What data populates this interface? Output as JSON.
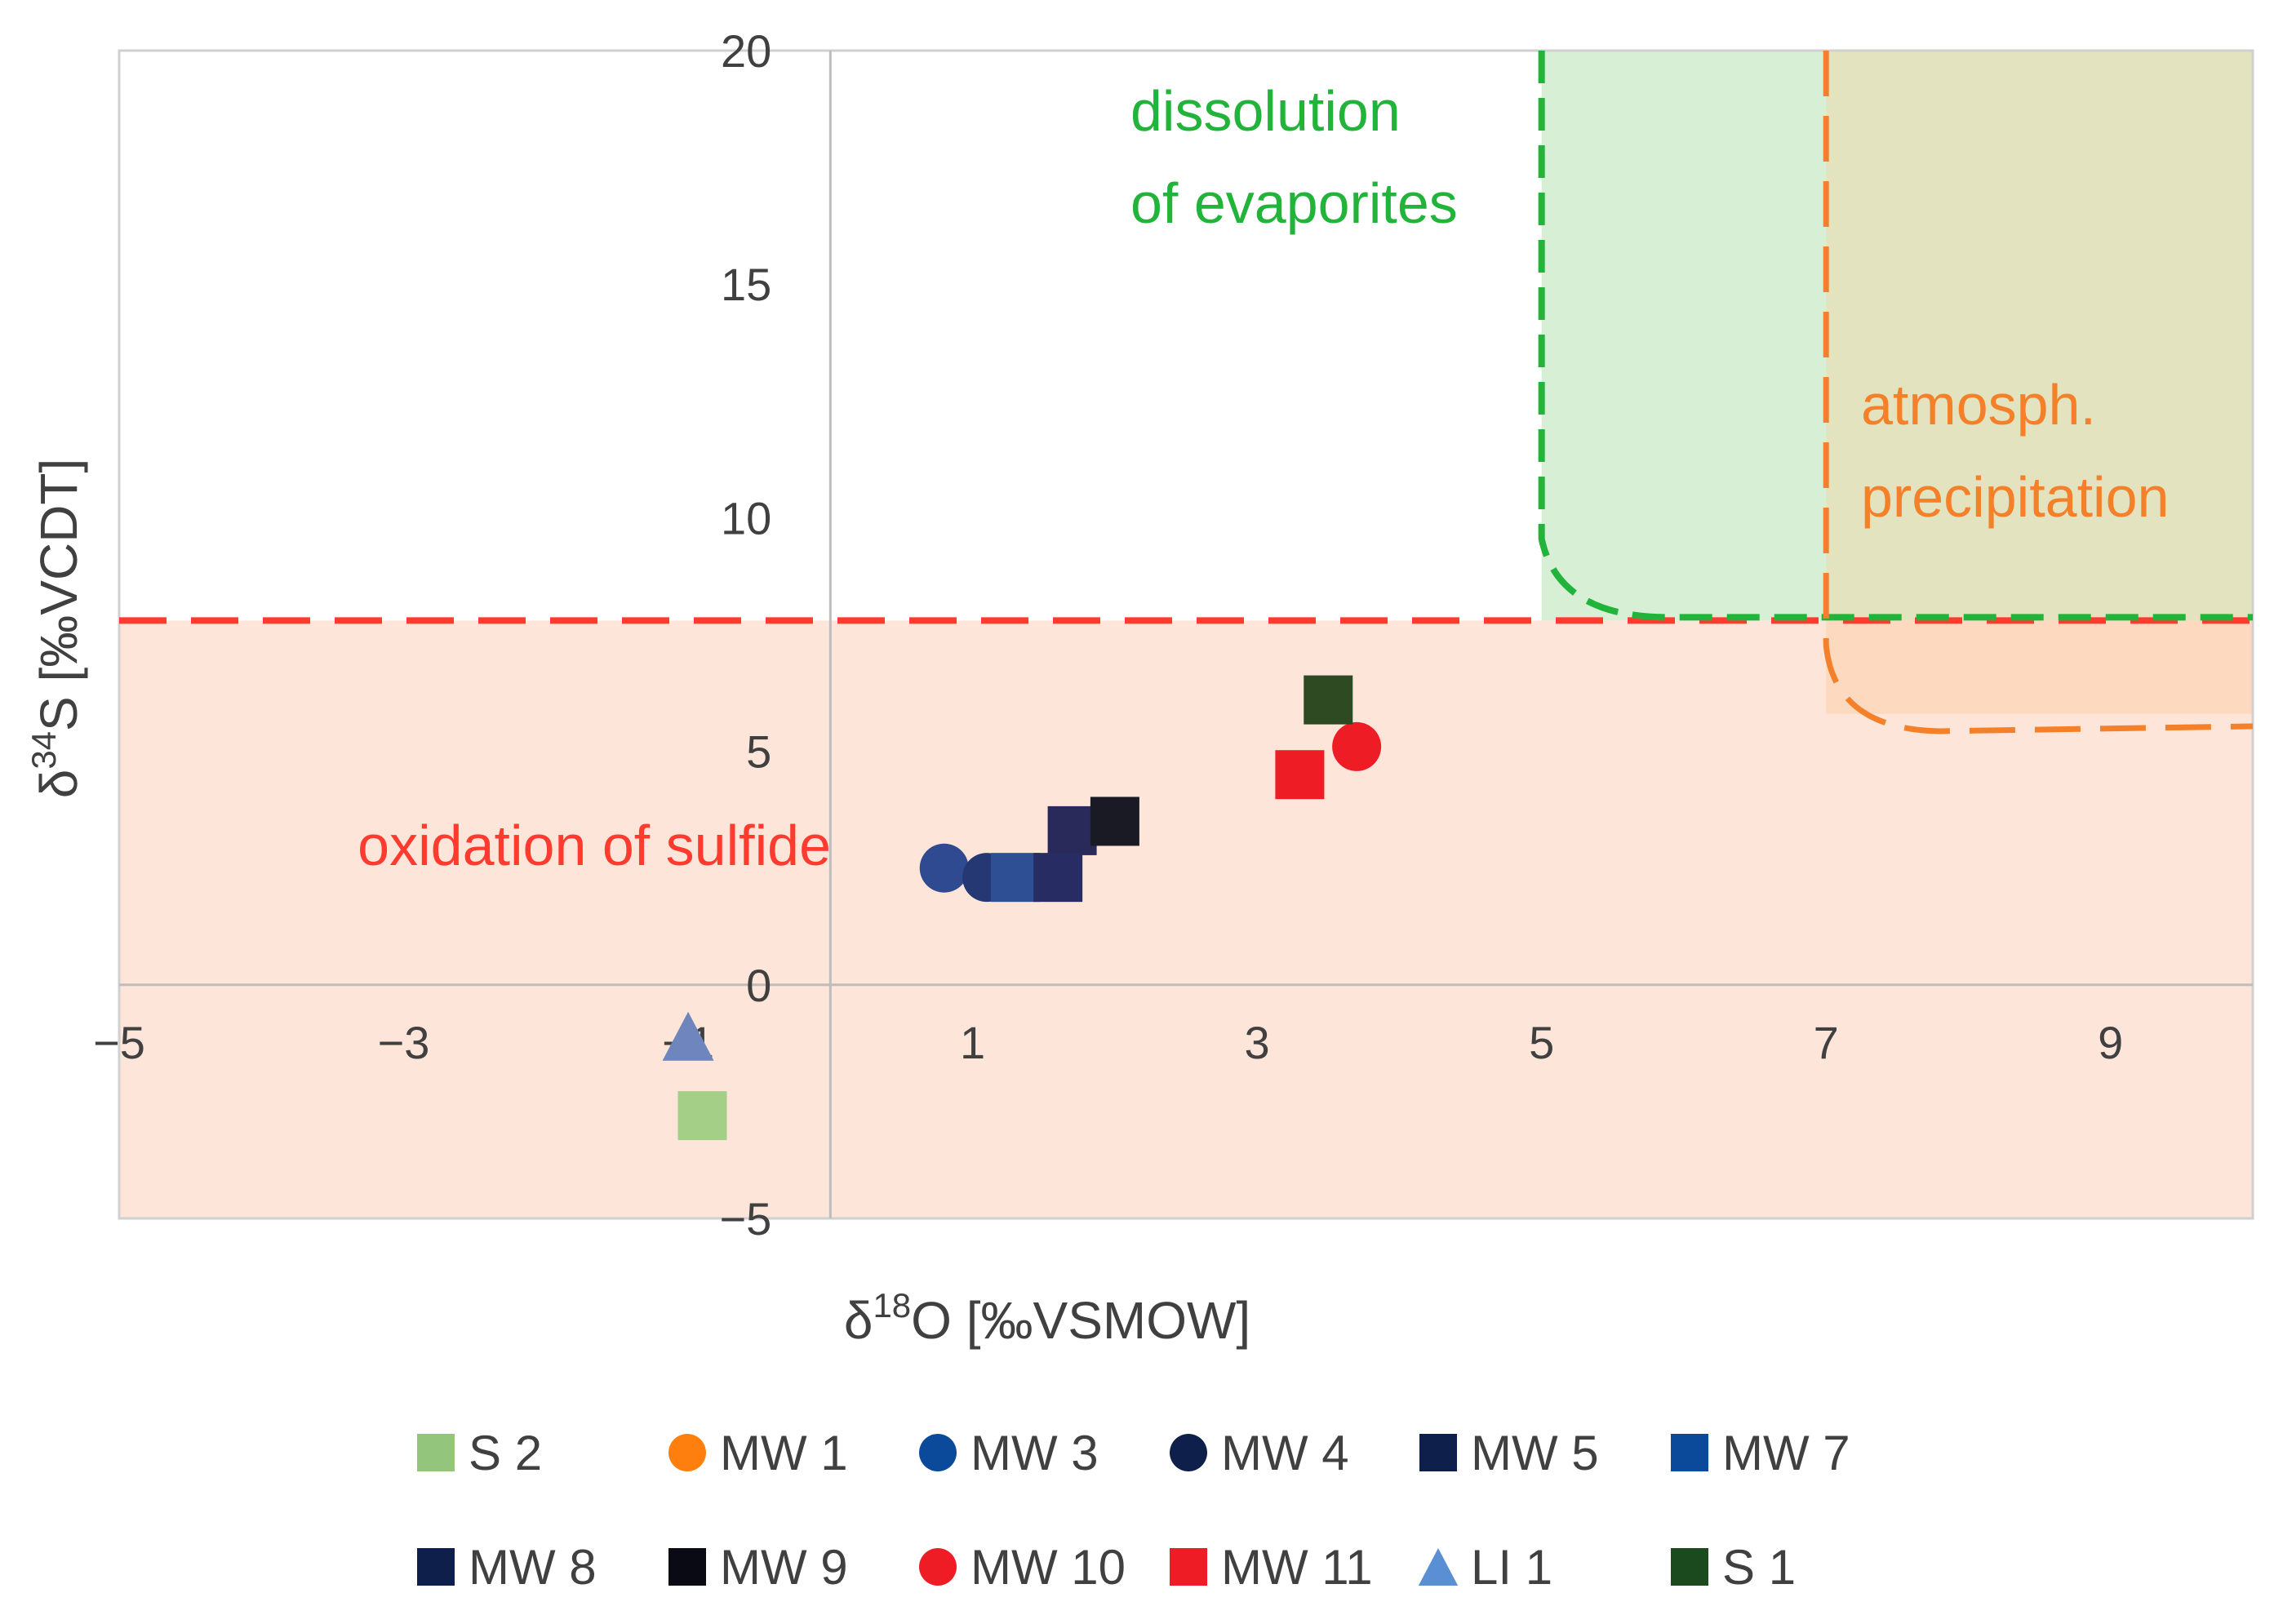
{
  "chart_data": {
    "type": "scatter",
    "xlabel_parts": [
      "δ",
      "18",
      "O [‰VSMOW]"
    ],
    "ylabel_parts": [
      "δ",
      "34",
      "S [‰VCDT]"
    ],
    "xlim": [
      -5,
      10
    ],
    "ylim": [
      -5,
      20
    ],
    "x_ticks": [
      {
        "value": -5,
        "label": "−5"
      },
      {
        "value": -3,
        "label": "−3"
      },
      {
        "value": -1,
        "label": "−1"
      },
      {
        "value": 1,
        "label": "1"
      },
      {
        "value": 3,
        "label": "3"
      },
      {
        "value": 5,
        "label": "5"
      },
      {
        "value": 7,
        "label": "7"
      },
      {
        "value": 9,
        "label": "9"
      }
    ],
    "y_ticks": [
      {
        "value": -5,
        "label": "−5"
      },
      {
        "value": 0,
        "label": "0"
      },
      {
        "value": 5,
        "label": "5"
      },
      {
        "value": 10,
        "label": "10"
      },
      {
        "value": 15,
        "label": "15"
      },
      {
        "value": 20,
        "label": "20"
      }
    ],
    "regions": [
      {
        "name": "oxidation-of-sulfide",
        "label_lines": [
          "oxidation of sulfide"
        ],
        "color": "#ff3b30",
        "fill": "#fde5da",
        "x": [
          -5,
          10
        ],
        "y": [
          -5,
          7.8
        ]
      },
      {
        "name": "dissolution-of-evaporites",
        "label_lines": [
          "dissolution",
          "of evaporites"
        ],
        "color": "#22b43a",
        "fill": "#d6efd5",
        "x": [
          5,
          10
        ],
        "y": [
          7.8,
          20
        ]
      },
      {
        "name": "atmospheric-precipitation",
        "label_lines": [
          "atmosph.",
          "precipitation"
        ],
        "color": "#f5802a",
        "fill": "#e3e3bf",
        "x": [
          7,
          10
        ],
        "y": [
          5.5,
          20
        ]
      }
    ],
    "series": [
      {
        "name": "S 2",
        "marker": "square",
        "color": "#a4cf87",
        "points": [
          [
            -0.9,
            -2.8
          ]
        ]
      },
      {
        "name": "MW 1",
        "marker": "circle",
        "color": "#ff7f0e",
        "points": []
      },
      {
        "name": "MW 3",
        "marker": "circle",
        "color": "#2f4a90",
        "points": [
          [
            0.8,
            2.5
          ]
        ]
      },
      {
        "name": "MW 4",
        "marker": "circle",
        "color": "#263873",
        "points": [
          [
            1.1,
            2.3
          ]
        ]
      },
      {
        "name": "MW 5",
        "marker": "square",
        "color": "#2a2a5a",
        "points": [
          [
            1.7,
            3.3
          ]
        ]
      },
      {
        "name": "MW 7",
        "marker": "square",
        "color": "#2f4f95",
        "points": [
          [
            1.3,
            2.3
          ]
        ]
      },
      {
        "name": "MW 8",
        "marker": "square",
        "color": "#272d63",
        "points": [
          [
            1.6,
            2.3
          ]
        ]
      },
      {
        "name": "MW 9",
        "marker": "square",
        "color": "#1a1a24",
        "points": [
          [
            2.0,
            3.5
          ]
        ]
      },
      {
        "name": "MW 10",
        "marker": "circle",
        "color": "#ee1c25",
        "points": [
          [
            3.7,
            5.1
          ]
        ]
      },
      {
        "name": "MW 11",
        "marker": "square",
        "color": "#ee1c25",
        "points": [
          [
            3.3,
            4.5
          ]
        ]
      },
      {
        "name": "LI 1",
        "marker": "triangle",
        "color": "#6f85bd",
        "points": [
          [
            -1.0,
            -1.1
          ]
        ]
      },
      {
        "name": "S 1",
        "marker": "square",
        "color": "#2e4a22",
        "points": [
          [
            3.5,
            6.1
          ]
        ]
      }
    ],
    "legend": [
      {
        "label": "S 2",
        "marker": "square",
        "color": "#93c57c"
      },
      {
        "label": "MW 1",
        "marker": "circle",
        "color": "#ff7f0e"
      },
      {
        "label": "MW 3",
        "marker": "circle",
        "color": "#0b4a9a"
      },
      {
        "label": "MW 4",
        "marker": "circle",
        "color": "#0d1f4a"
      },
      {
        "label": "MW 5",
        "marker": "square",
        "color": "#0d1f4a"
      },
      {
        "label": "MW 7",
        "marker": "square",
        "color": "#0b4a9a"
      },
      {
        "label": "MW 8",
        "marker": "square",
        "color": "#0d1f4a"
      },
      {
        "label": "MW 9",
        "marker": "square",
        "color": "#0a0a14"
      },
      {
        "label": "MW 10",
        "marker": "circle",
        "color": "#ee1c25"
      },
      {
        "label": "MW 11",
        "marker": "square",
        "color": "#ee1c25"
      },
      {
        "label": "LI 1",
        "marker": "triangle",
        "color": "#5b8fd4"
      },
      {
        "label": "S 1",
        "marker": "square",
        "color": "#1a4a1e"
      }
    ]
  }
}
